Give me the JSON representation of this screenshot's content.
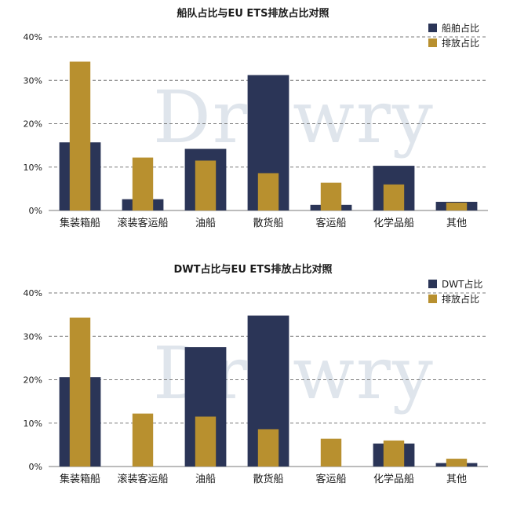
{
  "colors": {
    "fleet": "#2b3557",
    "emission": "#b8902f",
    "grid": "#7a7a7a",
    "watermark": "#dfe5ec"
  },
  "watermark": "Drewry",
  "chart_data": [
    {
      "type": "bar",
      "title": "船队占比与EU ETS排放占比对照",
      "categories": [
        "集装箱船",
        "滚装客运船",
        "油船",
        "散货船",
        "客运船",
        "化学品船",
        "其他"
      ],
      "series": [
        {
          "name": "船舶占比",
          "values": [
            15.7,
            2.6,
            14.2,
            31.2,
            1.3,
            10.3,
            2.0
          ]
        },
        {
          "name": "排放占比",
          "values": [
            34.3,
            12.2,
            11.5,
            8.6,
            6.4,
            6.0,
            1.8
          ]
        }
      ],
      "yticks": [
        "0%",
        "10%",
        "20%",
        "30%",
        "40%"
      ],
      "ylim": [
        0,
        40
      ],
      "grid": true,
      "legend": "top-right"
    },
    {
      "type": "bar",
      "title": "DWT占比与EU ETS排放占比对照",
      "categories": [
        "集装箱船",
        "滚装客运船",
        "油船",
        "散货船",
        "客运船",
        "化学品船",
        "其他"
      ],
      "series": [
        {
          "name": "DWT占比",
          "values": [
            20.6,
            0.0,
            27.5,
            34.8,
            0.0,
            5.3,
            0.8
          ]
        },
        {
          "name": "排放占比",
          "values": [
            34.3,
            12.2,
            11.5,
            8.6,
            6.4,
            6.0,
            1.8
          ]
        }
      ],
      "yticks": [
        "0%",
        "10%",
        "20%",
        "30%",
        "40%"
      ],
      "ylim": [
        0,
        40
      ],
      "grid": true,
      "legend": "top-right"
    }
  ]
}
